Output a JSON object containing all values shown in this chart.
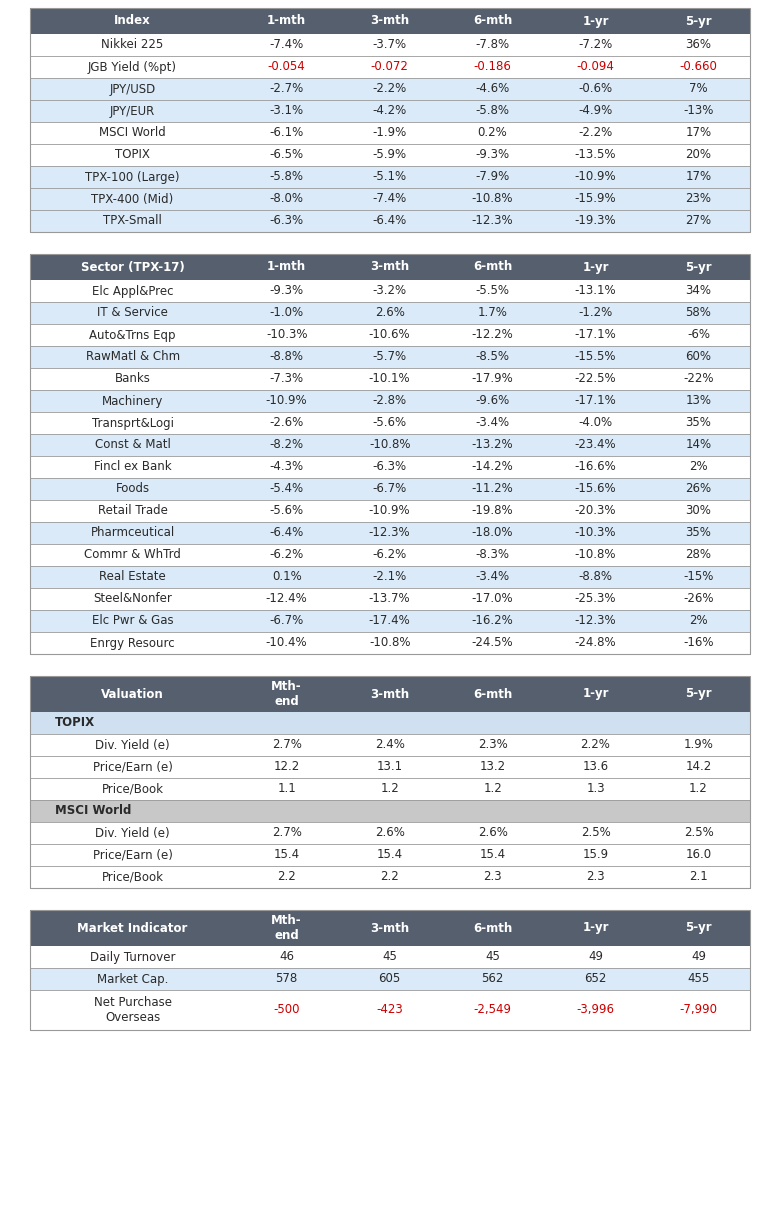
{
  "table1": {
    "header": [
      "Index",
      "1-mth",
      "3-mth",
      "6-mth",
      "1-yr",
      "5-yr"
    ],
    "rows": [
      [
        "Nikkei 225",
        "-7.4%",
        "-3.7%",
        "-7.8%",
        "-7.2%",
        "36%"
      ],
      [
        "JGB Yield (%pt)",
        "-0.054",
        "-0.072",
        "-0.186",
        "-0.094",
        "-0.660"
      ],
      [
        "JPY/USD",
        "-2.7%",
        "-2.2%",
        "-4.6%",
        "-0.6%",
        "7%"
      ],
      [
        "JPY/EUR",
        "-3.1%",
        "-4.2%",
        "-5.8%",
        "-4.9%",
        "-13%"
      ],
      [
        "MSCI World",
        "-6.1%",
        "-1.9%",
        "0.2%",
        "-2.2%",
        "17%"
      ],
      [
        "TOPIX",
        "-6.5%",
        "-5.9%",
        "-9.3%",
        "-13.5%",
        "20%"
      ],
      [
        "TPX-100 (Large)",
        "-5.8%",
        "-5.1%",
        "-7.9%",
        "-10.9%",
        "17%"
      ],
      [
        "TPX-400 (Mid)",
        "-8.0%",
        "-7.4%",
        "-10.8%",
        "-15.9%",
        "23%"
      ],
      [
        "TPX-Small",
        "-6.3%",
        "-6.4%",
        "-12.3%",
        "-19.3%",
        "27%"
      ]
    ],
    "red_rows": [
      1
    ],
    "blue_rows": [
      2,
      3,
      6,
      7,
      8
    ]
  },
  "table2": {
    "header": [
      "Sector (TPX-17)",
      "1-mth",
      "3-mth",
      "6-mth",
      "1-yr",
      "5-yr"
    ],
    "rows": [
      [
        "Elc Appl&Prec",
        "-9.3%",
        "-3.2%",
        "-5.5%",
        "-13.1%",
        "34%"
      ],
      [
        "IT & Service",
        "-1.0%",
        "2.6%",
        "1.7%",
        "-1.2%",
        "58%"
      ],
      [
        "Auto&Trns Eqp",
        "-10.3%",
        "-10.6%",
        "-12.2%",
        "-17.1%",
        "-6%"
      ],
      [
        "RawMatl & Chm",
        "-8.8%",
        "-5.7%",
        "-8.5%",
        "-15.5%",
        "60%"
      ],
      [
        "Banks",
        "-7.3%",
        "-10.1%",
        "-17.9%",
        "-22.5%",
        "-22%"
      ],
      [
        "Machinery",
        "-10.9%",
        "-2.8%",
        "-9.6%",
        "-17.1%",
        "13%"
      ],
      [
        "Transprt&Logi",
        "-2.6%",
        "-5.6%",
        "-3.4%",
        "-4.0%",
        "35%"
      ],
      [
        "Const & Matl",
        "-8.2%",
        "-10.8%",
        "-13.2%",
        "-23.4%",
        "14%"
      ],
      [
        "Fincl ex Bank",
        "-4.3%",
        "-6.3%",
        "-14.2%",
        "-16.6%",
        "2%"
      ],
      [
        "Foods",
        "-5.4%",
        "-6.7%",
        "-11.2%",
        "-15.6%",
        "26%"
      ],
      [
        "Retail Trade",
        "-5.6%",
        "-10.9%",
        "-19.8%",
        "-20.3%",
        "30%"
      ],
      [
        "Pharmceutical",
        "-6.4%",
        "-12.3%",
        "-18.0%",
        "-10.3%",
        "35%"
      ],
      [
        "Commr & WhTrd",
        "-6.2%",
        "-6.2%",
        "-8.3%",
        "-10.8%",
        "28%"
      ],
      [
        "Real Estate",
        "0.1%",
        "-2.1%",
        "-3.4%",
        "-8.8%",
        "-15%"
      ],
      [
        "Steel&Nonfer",
        "-12.4%",
        "-13.7%",
        "-17.0%",
        "-25.3%",
        "-26%"
      ],
      [
        "Elc Pwr & Gas",
        "-6.7%",
        "-17.4%",
        "-16.2%",
        "-12.3%",
        "2%"
      ],
      [
        "Enrgy Resourc",
        "-10.4%",
        "-10.8%",
        "-24.5%",
        "-24.8%",
        "-16%"
      ]
    ],
    "blue_rows": [
      1,
      3,
      5,
      7,
      9,
      11,
      13,
      15
    ]
  },
  "table3": {
    "header": [
      "Valuation",
      "Mth-\nend",
      "3-mth",
      "6-mth",
      "1-yr",
      "5-yr"
    ],
    "sections": [
      {
        "label": "TOPIX",
        "label_bg": "#cfe0f0",
        "rows": [
          [
            "Div. Yield (e)",
            "2.7%",
            "2.4%",
            "2.3%",
            "2.2%",
            "1.9%"
          ],
          [
            "Price/Earn (e)",
            "12.2",
            "13.1",
            "13.2",
            "13.6",
            "14.2"
          ],
          [
            "Price/Book",
            "1.1",
            "1.2",
            "1.2",
            "1.3",
            "1.2"
          ]
        ]
      },
      {
        "label": "MSCI World",
        "label_bg": "#c8c8c8",
        "rows": [
          [
            "Div. Yield (e)",
            "2.7%",
            "2.6%",
            "2.6%",
            "2.5%",
            "2.5%"
          ],
          [
            "Price/Earn (e)",
            "15.4",
            "15.4",
            "15.4",
            "15.9",
            "16.0"
          ],
          [
            "Price/Book",
            "2.2",
            "2.2",
            "2.3",
            "2.3",
            "2.1"
          ]
        ]
      }
    ]
  },
  "table4": {
    "header": [
      "Market Indicator",
      "Mth-\nend",
      "3-mth",
      "6-mth",
      "1-yr",
      "5-yr"
    ],
    "rows": [
      [
        "Daily Turnover",
        "46",
        "45",
        "45",
        "49",
        "49"
      ],
      [
        "Market Cap.",
        "578",
        "605",
        "562",
        "652",
        "455"
      ],
      [
        "Net Purchase\nOverseas",
        "-500",
        "-423",
        "-2,549",
        "-3,996",
        "-7,990"
      ]
    ],
    "red_rows": [
      2
    ],
    "blue_rows": [
      1
    ]
  },
  "header_bg": "#555f6e",
  "header_fg": "#ffffff",
  "blue_bg": "#daeaf8",
  "white_bg": "#ffffff",
  "red_color": "#cc0000",
  "dark_color": "#2a2a2a",
  "border_color": "#999999"
}
